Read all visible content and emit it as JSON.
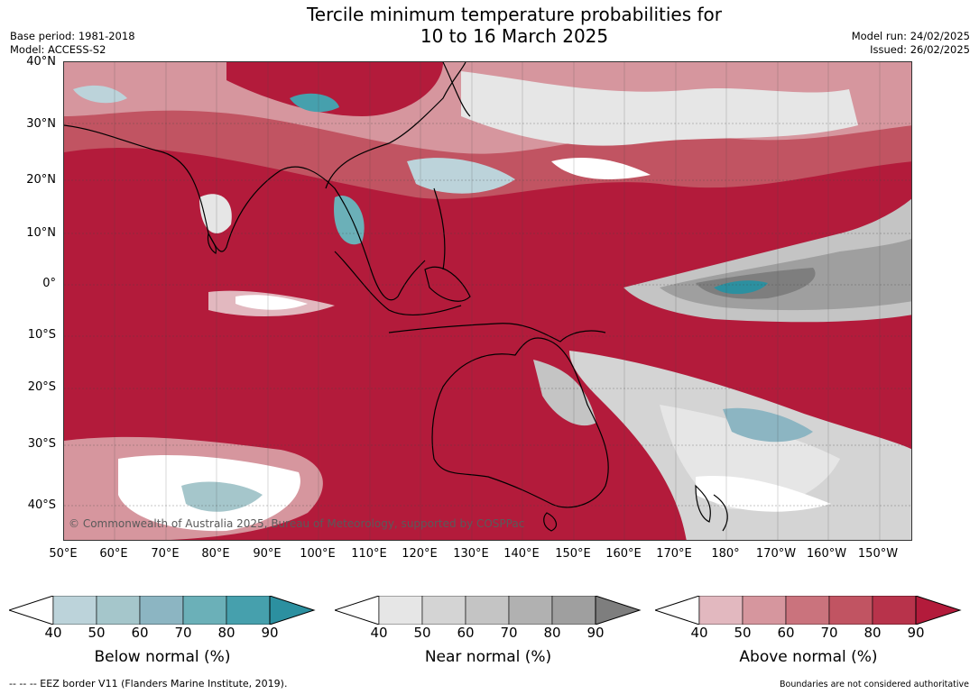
{
  "title_line1": "Tercile minimum temperature probabilities for",
  "title_line2": "10 to 16 March 2025",
  "base_period": "Base period: 1981-2018",
  "model": "Model: ACCESS-S2",
  "model_run": "Model run: 24/02/2025",
  "issued": "Issued: 26/02/2025",
  "lat_labels": [
    "40°N",
    "30°N",
    "20°N",
    "10°N",
    "0°",
    "10°S",
    "20°S",
    "30°S",
    "40°S"
  ],
  "lon_labels": [
    "50°E",
    "60°E",
    "70°E",
    "80°E",
    "90°E",
    "100°E",
    "110°E",
    "120°E",
    "130°E",
    "140°E",
    "150°E",
    "160°E",
    "170°E",
    "180°",
    "170°W",
    "160°W",
    "150°W"
  ],
  "copyright": "© Commonwealth of Australia 2025, Bureau of Meteorology, supported by COSPPac",
  "colorbars": [
    {
      "label": "Below normal (%)",
      "ticks": [
        "40",
        "50",
        "60",
        "70",
        "80",
        "90"
      ],
      "colors": [
        "#ffffff",
        "#bcd3da",
        "#a5c6cb",
        "#8cb5c2",
        "#6bb0b8",
        "#46a0ad",
        "#2c90a0"
      ]
    },
    {
      "label": "Near normal (%)",
      "ticks": [
        "40",
        "50",
        "60",
        "70",
        "80",
        "90"
      ],
      "colors": [
        "#ffffff",
        "#e6e6e6",
        "#d4d4d4",
        "#c4c4c4",
        "#b1b1b1",
        "#9f9f9f",
        "#7e7e7e"
      ]
    },
    {
      "label": "Above normal (%)",
      "ticks": [
        "40",
        "50",
        "60",
        "70",
        "80",
        "90"
      ],
      "colors": [
        "#ffffff",
        "#e2b8bf",
        "#d6969e",
        "#ca737d",
        "#c15462",
        "#b8334b",
        "#b31b3b"
      ]
    }
  ],
  "footer_left": "--  --  -- EEZ border V11 (Flanders Marine Institute, 2019).",
  "footer_right": "Boundaries are not considered authoritative"
}
